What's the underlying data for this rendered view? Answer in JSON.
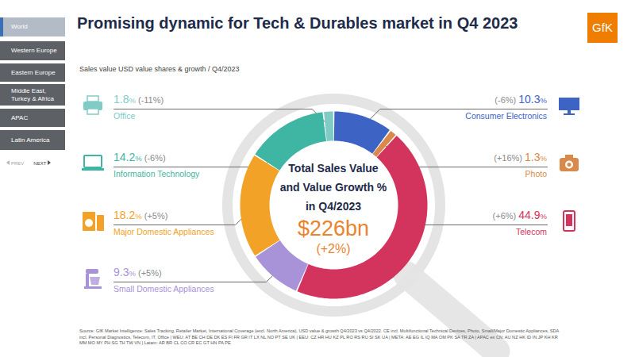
{
  "chart_data": {
    "type": "donut",
    "title": "Promising dynamic for Tech & Durables market in Q4 2023",
    "subtitle": "Sales value USD value shares & growth / Q4/2023",
    "categories": [
      "Consumer Electronics",
      "Photo",
      "Telecom",
      "Small Domestic Appliances",
      "Major Domestic Appliances",
      "Information Technology",
      "Office"
    ],
    "values": [
      10.3,
      1.3,
      44.9,
      9.3,
      18.2,
      14.2,
      1.8
    ],
    "value_labels": [
      "10.3%",
      "1.3%",
      "44.9%",
      "9.3%",
      "18.2%",
      "14.2%",
      "1.8%"
    ],
    "growth": [
      -6,
      16,
      6,
      5,
      5,
      -6,
      -11
    ],
    "growth_labels": [
      "(-6%)",
      "(+16%)",
      "(+6%)",
      "(+5%)",
      "(+5%)",
      "(-6%)",
      "(-11%)"
    ],
    "colors": [
      "#3d63c4",
      "#d98a4a",
      "#d3345e",
      "#a893d8",
      "#f2a227",
      "#3fb6a4",
      "#80cbc6"
    ],
    "data_labels": true,
    "center_text": [
      "Total Sales Value",
      "and Value Growth %",
      "in Q4/2023"
    ],
    "total": 226,
    "total_label": "$226bn",
    "total_growth": 2,
    "total_growth_label": "(+2%)"
  },
  "navigation": {
    "regions": [
      "World",
      "Western Europe",
      "Eastern Europe",
      "Middle East, Turkey & Africa",
      "APAC",
      "Latin America"
    ],
    "selected": "World",
    "prev": "PREV",
    "next": "NEXT"
  },
  "logo": "GfK",
  "source": "Source: GfK Market Intelligence: Sales Tracking, Retailer Market, International Coverage (excl. North America), USD value & growth Q4/2023 vs Q4/2022. CE incl. Multifunctional Technical Devices, Photo, Small/Major Domestic Appliances, SDA incl. Personal Diagnostics, Telecom, IT, Office | WEU: AT BE CH DE DK ES FI FR GR IT LX NL NO PT SE UK | EEU: CZ HR HU KZ PL RO RS RU SI SK UA | META: AE EG IL IQ MA OM PK SA TR ZA | APAC ex CN: AU NZ HK ID IN JP KH KR MM MO MY PH SG TH TW VN | Latam: AR BR CL CO CR EC GT HN PA PE"
}
